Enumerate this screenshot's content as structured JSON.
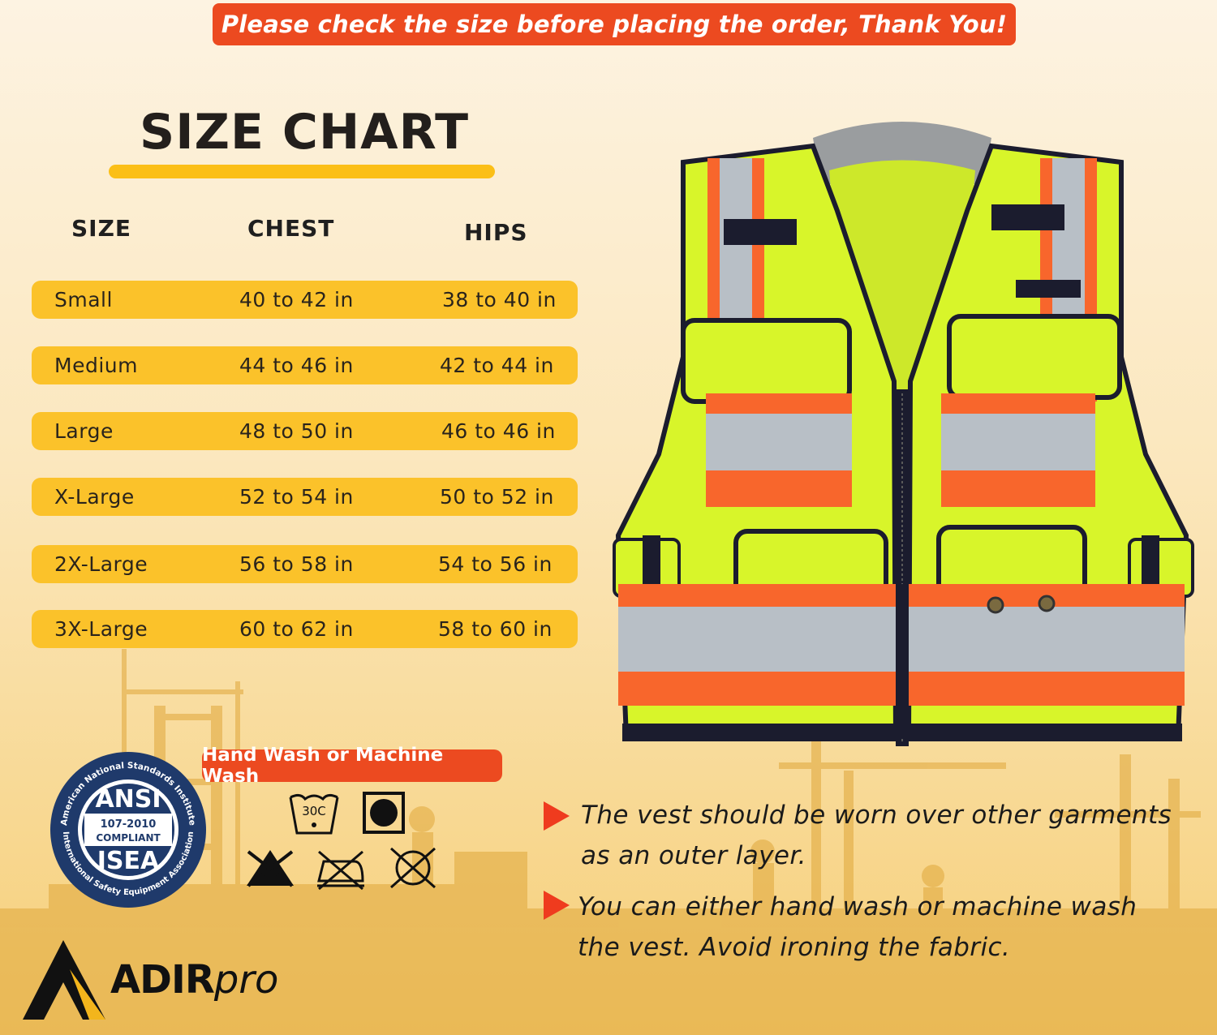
{
  "banner": {
    "text": "Please check the size before placing the order, Thank You!"
  },
  "size_chart": {
    "title": "SIZE CHART",
    "headers": {
      "size": "SIZE",
      "chest": "CHEST",
      "hips": "HIPS"
    },
    "rows": [
      {
        "size": "Small",
        "chest": "40 to 42 in",
        "hips": "38 to 40 in"
      },
      {
        "size": "Medium",
        "chest": "44 to 46 in",
        "hips": "42 to 44 in"
      },
      {
        "size": "Large",
        "chest": "48 to 50 in",
        "hips": "46 to 46 in"
      },
      {
        "size": "X-Large",
        "chest": "52 to 54 in",
        "hips": "50 to 52 in"
      },
      {
        "size": "2X-Large",
        "chest": "56 to 58 in",
        "hips": "54 to 56 in"
      },
      {
        "size": "3X-Large",
        "chest": "60 to 62 in",
        "hips": "58 to 60 in"
      }
    ]
  },
  "badge": {
    "arc_top": "American National Standards Institute",
    "arc_bottom": "International Safety Equipment Association",
    "ansi": "ANSI",
    "standard": "107-2010",
    "compliant": "COMPLIANT",
    "isea": "ISEA"
  },
  "care": {
    "label": "Hand Wash or Machine Wash",
    "wash_temp": "30C",
    "icons": [
      "wash-30c-icon",
      "tumble-dry-icon",
      "no-bleach-icon",
      "no-iron-icon",
      "no-dry-clean-icon"
    ]
  },
  "notes": [
    {
      "line1": "The vest should be worn over other garments",
      "line2": "as an outer layer."
    },
    {
      "line1": "You can either hand wash or machine wash",
      "line2": "the vest. Avoid ironing the fabric."
    }
  ],
  "brand": {
    "name_bold": "ADIR",
    "name_light": "pro"
  },
  "colors": {
    "accent_orange": "#ec4a20",
    "row_yellow": "#fbc22a",
    "vest_lime": "#d8f52a",
    "reflective_orange": "#f8662c",
    "reflective_silver": "#b8bfc6"
  }
}
